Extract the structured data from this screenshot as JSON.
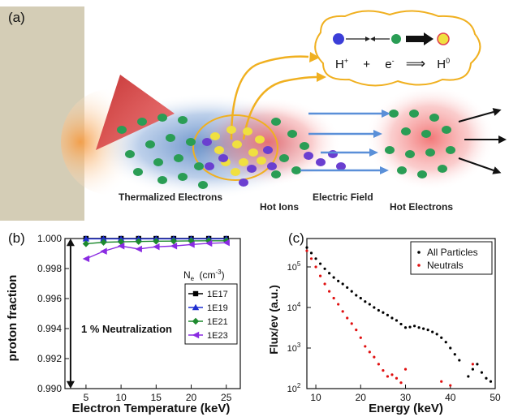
{
  "panel_a": {
    "label": "(a)",
    "reaction": {
      "proton": "H",
      "proton_sup": "+",
      "plus": "+",
      "electron": "e",
      "electron_sup": "-",
      "arrow": "⟹",
      "neutral": "H",
      "neutral_sup": "0"
    },
    "labels": {
      "thermalized_electrons": "Thermalized Electrons",
      "hot_ions": "Hot Ions",
      "electric_field": "Electric Field",
      "hot_electrons": "Hot Electrons"
    },
    "colors": {
      "target": "#d4cdb6",
      "laser": "#e8403a",
      "electron": "#2a9d55",
      "ion": "#f0e040",
      "neutral": "#6a3fd0",
      "field_arrow": "#5a8fd8",
      "cloud_outline": "#f0b020"
    }
  },
  "chart_data": [
    {
      "panel_label": "(b)",
      "type": "line",
      "xlabel": "Electron Temperature (keV)",
      "ylabel": "proton fraction",
      "xlim": [
        2,
        27
      ],
      "ylim": [
        0.99,
        1.0
      ],
      "xticks": [
        "5",
        "10",
        "15",
        "20",
        "25"
      ],
      "yticks": [
        "0.990",
        "0.992",
        "0.994",
        "0.996",
        "0.998",
        "1.000"
      ],
      "legend_title": "N",
      "legend_title_sub": "e",
      "legend_title_unit": "(cm",
      "legend_title_unit_sup": "-3",
      "legend_title_close": ")",
      "legend_position": "right",
      "annotation": "1 % Neutralization",
      "x": [
        5,
        7.5,
        10,
        12.5,
        15,
        17.5,
        20,
        22.5,
        25
      ],
      "series": [
        {
          "name": "1E17",
          "color": "#000000",
          "marker": "square",
          "values": [
            1.0,
            1.0,
            1.0,
            1.0,
            1.0,
            1.0,
            1.0,
            1.0,
            1.0
          ]
        },
        {
          "name": "1E19",
          "color": "#1f2fd0",
          "marker": "triangle",
          "values": [
            0.99998,
            0.99998,
            0.99998,
            0.99998,
            0.99998,
            0.99998,
            0.99998,
            0.99998,
            0.99998
          ]
        },
        {
          "name": "1E21",
          "color": "#1e8a2e",
          "marker": "diamond",
          "values": [
            0.99965,
            0.99975,
            0.99978,
            0.9998,
            0.99982,
            0.99983,
            0.99984,
            0.99985,
            0.99985
          ]
        },
        {
          "name": "1E23",
          "color": "#8a2be2",
          "marker": "triangle-left",
          "values": [
            0.99865,
            0.99915,
            0.9995,
            0.9993,
            0.99945,
            0.9995,
            0.9996,
            0.99968,
            0.99972
          ]
        }
      ]
    },
    {
      "panel_label": "(c)",
      "type": "scatter",
      "xlabel": "Energy (keV)",
      "ylabel": "Flux/ev (a.u.)",
      "xlim": [
        8,
        50
      ],
      "ylim_log": [
        2,
        5.7
      ],
      "yscale": "log",
      "xticks": [
        "10",
        "20",
        "30",
        "40",
        "50"
      ],
      "yticks": [
        {
          "base": "10",
          "exp": "2"
        },
        {
          "base": "10",
          "exp": "3"
        },
        {
          "base": "10",
          "exp": "4"
        },
        {
          "base": "10",
          "exp": "5"
        }
      ],
      "legend_position": "top-right",
      "series": [
        {
          "name": "All Particles",
          "color": "#000000",
          "x": [
            8,
            9,
            10,
            11,
            12,
            13,
            14,
            15,
            16,
            17,
            18,
            19,
            20,
            21,
            22,
            23,
            24,
            25,
            26,
            27,
            28,
            29,
            30,
            31,
            32,
            33,
            34,
            35,
            36,
            37,
            38,
            39,
            40,
            41,
            42,
            44,
            45,
            46,
            47,
            48,
            49
          ],
          "y": [
            300000,
            220000,
            160000,
            120000,
            90000,
            70000,
            55000,
            45000,
            38000,
            31000,
            25000,
            20000,
            17000,
            14000,
            12000,
            10000,
            8500,
            7500,
            6500,
            5500,
            4800,
            3900,
            3200,
            3300,
            3500,
            3200,
            3000,
            2800,
            2500,
            2200,
            1800,
            1400,
            1000,
            700,
            500,
            200,
            300,
            400,
            250,
            180,
            150
          ]
        },
        {
          "name": "Neutrals",
          "color": "#e01010",
          "x": [
            8,
            9,
            10,
            11,
            12,
            13,
            14,
            15,
            16,
            17,
            18,
            19,
            20,
            21,
            22,
            23,
            24,
            25,
            26,
            27,
            28,
            29,
            30,
            38,
            40,
            45
          ],
          "y": [
            250000,
            160000,
            100000,
            60000,
            38000,
            25000,
            17000,
            12000,
            8000,
            5500,
            4000,
            2800,
            1800,
            1100,
            800,
            600,
            400,
            280,
            200,
            220,
            180,
            140,
            300,
            150,
            120,
            400
          ]
        }
      ]
    }
  ]
}
